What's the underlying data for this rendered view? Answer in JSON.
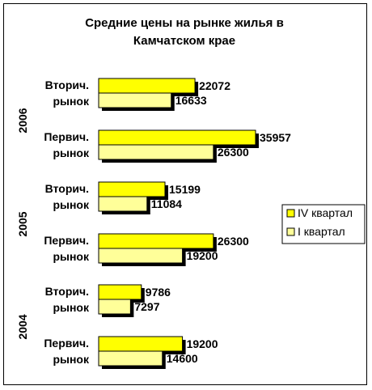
{
  "chart_data": {
    "type": "bar",
    "orientation": "horizontal",
    "title": "Средние цены на рынке жилья в Камчатском крае",
    "title_lines": [
      "Средние цены на рынке жилья в",
      "Камчатском крае"
    ],
    "xlabel": "",
    "ylabel": "",
    "grid": false,
    "legend_position": "right",
    "groups": [
      {
        "year": "2006",
        "categories": [
          {
            "label_lines": [
              "Вторич.",
              "рынок"
            ],
            "values": {
              "IV": 22072,
              "I": 16633
            }
          },
          {
            "label_lines": [
              "Первич.",
              "рынок"
            ],
            "values": {
              "IV": 35957,
              "I": 26300
            }
          }
        ]
      },
      {
        "year": "2005",
        "categories": [
          {
            "label_lines": [
              "Вторич.",
              "рынок"
            ],
            "values": {
              "IV": 15199,
              "I": 11084
            }
          },
          {
            "label_lines": [
              "Первич.",
              "рынок"
            ],
            "values": {
              "IV": 26300,
              "I": 19200
            }
          }
        ]
      },
      {
        "year": "2004",
        "categories": [
          {
            "label_lines": [
              "Вторич.",
              "рынок"
            ],
            "values": {
              "IV": 9786,
              "I": 7297
            }
          },
          {
            "label_lines": [
              "Первич.",
              "рынок"
            ],
            "values": {
              "IV": 19200,
              "I": 14600
            }
          }
        ]
      }
    ],
    "series": [
      {
        "key": "IV",
        "name": "IV квартал",
        "color": "#ffff00"
      },
      {
        "key": "I",
        "name": "I квартал",
        "color": "#ffff99"
      }
    ],
    "xlim": [
      0,
      40000
    ],
    "shadow_color": "#000000"
  }
}
